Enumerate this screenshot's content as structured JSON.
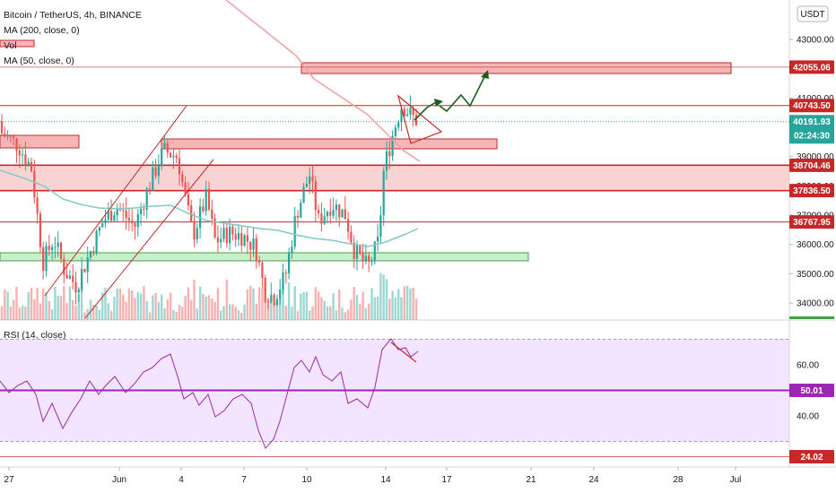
{
  "header": {
    "symbol_line": "Bitcoin / TetherUS, 4h, BINANCE",
    "ma200_label": "MA (200, close, 0)",
    "vol_label": "Vol",
    "ma50_label": "MA (50, close, 0)",
    "currency_badge": "USDT",
    "rsi_label": "RSI (14, close)"
  },
  "colors": {
    "resistance": "#c62828",
    "zone_fill": "#f4b6b6",
    "support_fill": "#c8efc8",
    "support_stroke": "#43a047",
    "up_candle": "#26a69a",
    "down_candle": "#ef5350",
    "ma200": "#f0a0a0",
    "ma50": "#80cbc4",
    "rsi_line": "#9c27b0",
    "rsi_band": "#f3e5ff",
    "projection": "#1b5e20"
  },
  "chart_data": [
    {
      "type": "candlestick",
      "title": "Bitcoin / TetherUS, 4h, BINANCE",
      "x_ticks": [
        "27",
        "Jun",
        "4",
        "7",
        "10",
        "14",
        "17",
        "21",
        "24",
        "28",
        "Jul"
      ],
      "y_ticks": [
        34000,
        35000,
        36000,
        37000,
        38000,
        39000,
        40000,
        41000,
        42000,
        43000
      ],
      "y_tick_labels": [
        "34000.00",
        "35000.00",
        "36000.00",
        "37000.00",
        "38000.00",
        "39000.00",
        "40000.00",
        "41000.00",
        "42000.00",
        "43000.00"
      ],
      "ylim": [
        33500,
        44000
      ],
      "price_tags": [
        {
          "value": 42055.06,
          "label": "42055.06",
          "kind": "level"
        },
        {
          "value": 40743.5,
          "label": "40743.50",
          "kind": "level"
        },
        {
          "value": 40191.93,
          "label": "40191.93",
          "kind": "last",
          "countdown": "02:24:30"
        },
        {
          "value": 38704.46,
          "label": "38704.46",
          "kind": "level"
        },
        {
          "value": 37836.5,
          "label": "37836.50",
          "kind": "level"
        },
        {
          "value": 36767.95,
          "label": "36767.95",
          "kind": "level"
        }
      ],
      "zones": [
        {
          "from": 41900,
          "to": 42250,
          "kind": "resistance"
        },
        {
          "from": 39850,
          "to": 40150,
          "kind": "resistance"
        },
        {
          "from": 37836.5,
          "to": 38704.46,
          "kind": "resistance"
        },
        {
          "from": 35350,
          "to": 35600,
          "kind": "support"
        }
      ]
    },
    {
      "type": "line",
      "title": "RSI (14, close)",
      "y_ticks": [
        40,
        60
      ],
      "y_tick_labels": [
        "40.00",
        "60.00"
      ],
      "ylim": [
        20,
        80
      ],
      "price_tags": [
        {
          "value": 50.01,
          "label": "50.01"
        },
        {
          "value": 24.02,
          "label": "24.02"
        }
      ],
      "bands": [
        70,
        30
      ],
      "midline": 50
    }
  ]
}
